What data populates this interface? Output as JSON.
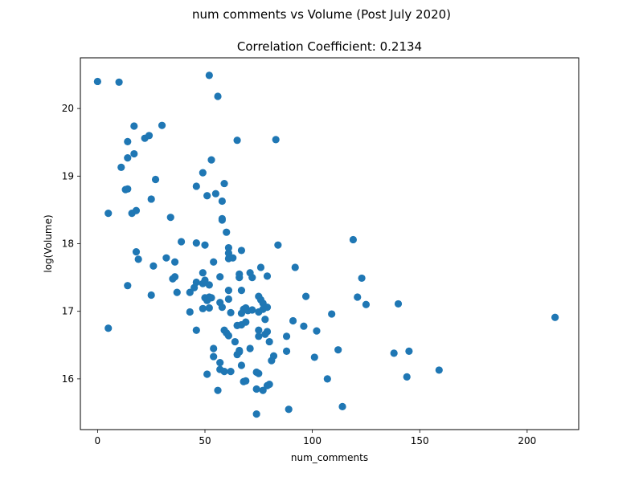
{
  "figure": {
    "suptitle": "num comments vs Volume (Post July 2020)"
  },
  "chart_data": {
    "type": "scatter",
    "title": "Correlation Coefficient: 0.2134",
    "xlabel": "num_comments",
    "ylabel": "log(Volume)",
    "xlim": [
      -8,
      224
    ],
    "ylim": [
      15.25,
      20.75
    ],
    "xticks": [
      0,
      50,
      100,
      150,
      200
    ],
    "yticks": [
      16,
      17,
      18,
      19,
      20
    ],
    "grid": false,
    "legend": "none",
    "marker_color": "#1f77b4",
    "points": [
      [
        0,
        20.4
      ],
      [
        10,
        20.39
      ],
      [
        52,
        20.49
      ],
      [
        56,
        20.18
      ],
      [
        17,
        19.74
      ],
      [
        30,
        19.75
      ],
      [
        22,
        19.56
      ],
      [
        24,
        19.6
      ],
      [
        14,
        19.51
      ],
      [
        17,
        19.33
      ],
      [
        14,
        19.27
      ],
      [
        11,
        19.13
      ],
      [
        65,
        19.53
      ],
      [
        83,
        19.54
      ],
      [
        53,
        19.24
      ],
      [
        49,
        19.05
      ],
      [
        27,
        18.95
      ],
      [
        59,
        18.89
      ],
      [
        13,
        18.8
      ],
      [
        14,
        18.81
      ],
      [
        46,
        18.85
      ],
      [
        51,
        18.71
      ],
      [
        55,
        18.74
      ],
      [
        58,
        18.63
      ],
      [
        25,
        18.66
      ],
      [
        5,
        18.45
      ],
      [
        16,
        18.45
      ],
      [
        18,
        18.49
      ],
      [
        34,
        18.39
      ],
      [
        58,
        18.35
      ],
      [
        58,
        18.37
      ],
      [
        60,
        18.17
      ],
      [
        39,
        18.03
      ],
      [
        46,
        18.01
      ],
      [
        50,
        17.98
      ],
      [
        61,
        17.94
      ],
      [
        84,
        17.98
      ],
      [
        119,
        18.06
      ],
      [
        18,
        17.88
      ],
      [
        19,
        17.77
      ],
      [
        32,
        17.79
      ],
      [
        36,
        17.73
      ],
      [
        26,
        17.67
      ],
      [
        54,
        17.73
      ],
      [
        61,
        17.86
      ],
      [
        61,
        17.78
      ],
      [
        63,
        17.79
      ],
      [
        67,
        17.9
      ],
      [
        76,
        17.65
      ],
      [
        92,
        17.65
      ],
      [
        35,
        17.48
      ],
      [
        36,
        17.51
      ],
      [
        49,
        17.57
      ],
      [
        57,
        17.51
      ],
      [
        66,
        17.5
      ],
      [
        66,
        17.55
      ],
      [
        71,
        17.57
      ],
      [
        72,
        17.5
      ],
      [
        79,
        17.52
      ],
      [
        123,
        17.49
      ],
      [
        14,
        17.38
      ],
      [
        25,
        17.24
      ],
      [
        37,
        17.28
      ],
      [
        43,
        17.28
      ],
      [
        45,
        17.35
      ],
      [
        46,
        17.43
      ],
      [
        49,
        17.41
      ],
      [
        50,
        17.46
      ],
      [
        52,
        17.39
      ],
      [
        61,
        17.31
      ],
      [
        67,
        17.31
      ],
      [
        50,
        17.2
      ],
      [
        51,
        17.16
      ],
      [
        52,
        17.21
      ],
      [
        53,
        17.2
      ],
      [
        57,
        17.13
      ],
      [
        61,
        17.18
      ],
      [
        75,
        17.22
      ],
      [
        76,
        17.17
      ],
      [
        77,
        17.12
      ],
      [
        97,
        17.22
      ],
      [
        121,
        17.21
      ],
      [
        125,
        17.1
      ],
      [
        140,
        17.11
      ],
      [
        43,
        16.99
      ],
      [
        49,
        17.04
      ],
      [
        52,
        17.05
      ],
      [
        58,
        17.06
      ],
      [
        62,
        16.98
      ],
      [
        67,
        16.97
      ],
      [
        68,
        17.03
      ],
      [
        69,
        17.05
      ],
      [
        70,
        17.01
      ],
      [
        72,
        17.02
      ],
      [
        75,
        16.99
      ],
      [
        77,
        17.03
      ],
      [
        79,
        17.06
      ],
      [
        109,
        16.96
      ],
      [
        213,
        16.91
      ],
      [
        5,
        16.75
      ],
      [
        46,
        16.72
      ],
      [
        59,
        16.72
      ],
      [
        60,
        16.68
      ],
      [
        61,
        16.64
      ],
      [
        65,
        16.79
      ],
      [
        67,
        16.8
      ],
      [
        69,
        16.84
      ],
      [
        75,
        16.72
      ],
      [
        75,
        16.63
      ],
      [
        78,
        16.66
      ],
      [
        79,
        16.7
      ],
      [
        78,
        16.88
      ],
      [
        80,
        16.55
      ],
      [
        88,
        16.63
      ],
      [
        91,
        16.86
      ],
      [
        96,
        16.78
      ],
      [
        102,
        16.71
      ],
      [
        54,
        16.45
      ],
      [
        54,
        16.33
      ],
      [
        57,
        16.24
      ],
      [
        64,
        16.55
      ],
      [
        65,
        16.36
      ],
      [
        66,
        16.42
      ],
      [
        66,
        16.4
      ],
      [
        71,
        16.45
      ],
      [
        81,
        16.27
      ],
      [
        82,
        16.34
      ],
      [
        88,
        16.41
      ],
      [
        101,
        16.32
      ],
      [
        112,
        16.43
      ],
      [
        138,
        16.38
      ],
      [
        145,
        16.41
      ],
      [
        51,
        16.07
      ],
      [
        57,
        16.14
      ],
      [
        59,
        16.11
      ],
      [
        62,
        16.11
      ],
      [
        67,
        16.2
      ],
      [
        68,
        15.96
      ],
      [
        69,
        15.97
      ],
      [
        74,
        16.1
      ],
      [
        75,
        16.08
      ],
      [
        79,
        15.9
      ],
      [
        80,
        15.92
      ],
      [
        107,
        16.0
      ],
      [
        144,
        16.03
      ],
      [
        159,
        16.13
      ],
      [
        56,
        15.83
      ],
      [
        74,
        15.85
      ],
      [
        77,
        15.83
      ],
      [
        74,
        15.48
      ],
      [
        89,
        15.55
      ],
      [
        114,
        15.59
      ]
    ]
  }
}
